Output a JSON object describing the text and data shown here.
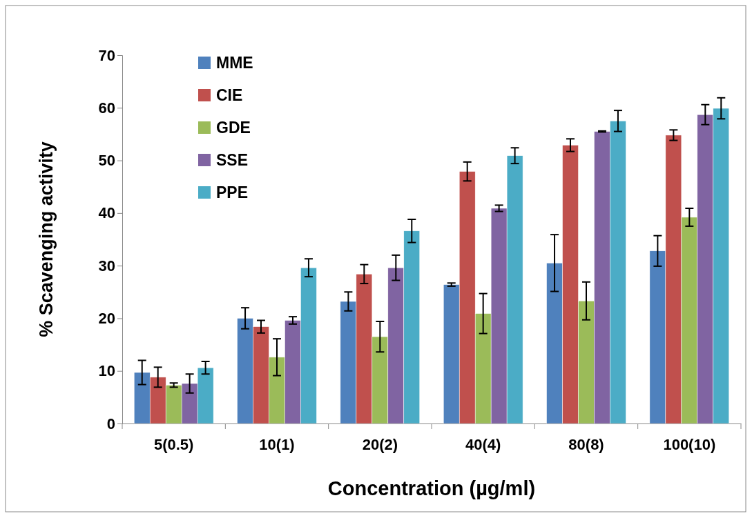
{
  "chart_data": {
    "type": "bar",
    "xlabel": "Concentration (µg/ml)",
    "ylabel": "% Scavenging activity",
    "categories": [
      "5(0.5)",
      "10(1)",
      "20(2)",
      "40(4)",
      "80(8)",
      "100(10)"
    ],
    "ylim": [
      0,
      70
    ],
    "yticks": [
      0,
      10,
      20,
      30,
      40,
      50,
      60,
      70
    ],
    "grid": false,
    "legend": "top left",
    "series": [
      {
        "name": "MME",
        "color": "#4f81bd",
        "values": [
          9.7,
          20,
          23.2,
          26.4,
          30.5,
          32.8
        ],
        "errors": [
          2.3,
          2,
          1.8,
          0.3,
          5.4,
          2.9
        ]
      },
      {
        "name": "CIE",
        "color": "#c0504d",
        "values": [
          8.8,
          18.4,
          28.4,
          47.9,
          52.9,
          54.8
        ],
        "errors": [
          1.9,
          1.2,
          1.8,
          1.8,
          1.2,
          1
        ]
      },
      {
        "name": "GDE",
        "color": "#9bbb59",
        "values": [
          7.3,
          12.6,
          16.5,
          20.9,
          23.3,
          39.2
        ],
        "errors": [
          0.4,
          3.5,
          2.9,
          3.8,
          3.6,
          1.7
        ]
      },
      {
        "name": "SSE",
        "color": "#8064a2",
        "values": [
          7.6,
          19.6,
          29.6,
          40.9,
          55.5,
          58.7
        ],
        "errors": [
          1.8,
          0.7,
          2.4,
          0.6,
          0.1,
          1.9
        ]
      },
      {
        "name": "PPE",
        "color": "#4bacc6",
        "values": [
          10.6,
          29.6,
          36.6,
          50.9,
          57.5,
          59.9
        ],
        "errors": [
          1.2,
          1.7,
          2.2,
          1.5,
          2,
          2
        ]
      }
    ]
  }
}
